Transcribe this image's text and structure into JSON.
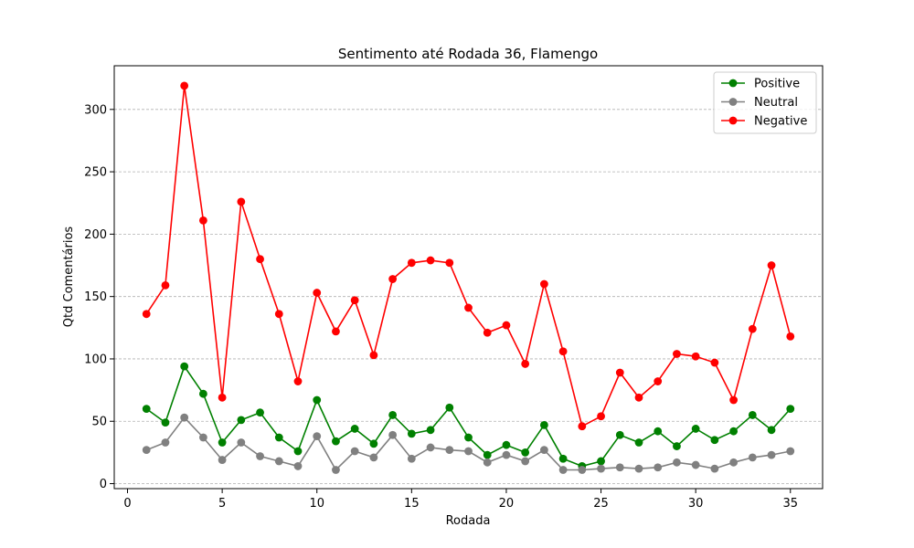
{
  "chart_data": {
    "type": "line",
    "title": "Sentimento até Rodada 36, Flamengo",
    "xlabel": "Rodada",
    "ylabel": "Qtd Comentários",
    "xlim": [
      -0.7,
      36.7
    ],
    "ylim": [
      -4,
      335
    ],
    "xticks": [
      0,
      5,
      10,
      15,
      20,
      25,
      30,
      35
    ],
    "yticks": [
      0,
      50,
      100,
      150,
      200,
      250,
      300
    ],
    "grid": "horizontal dashed",
    "legend_position": "top-right",
    "x": [
      1,
      2,
      3,
      4,
      5,
      6,
      7,
      8,
      9,
      10,
      11,
      12,
      13,
      14,
      15,
      16,
      17,
      18,
      19,
      20,
      21,
      22,
      23,
      24,
      25,
      26,
      27,
      28,
      29,
      30,
      31,
      32,
      33,
      34,
      35
    ],
    "series": [
      {
        "name": "Positive",
        "color": "#008000",
        "values": [
          60,
          49,
          94,
          72,
          33,
          51,
          57,
          37,
          26,
          67,
          34,
          44,
          32,
          55,
          40,
          43,
          61,
          37,
          23,
          31,
          25,
          47,
          20,
          14,
          18,
          39,
          33,
          42,
          30,
          44,
          35,
          42,
          55,
          43,
          60
        ]
      },
      {
        "name": "Neutral",
        "color": "#808080",
        "values": [
          27,
          33,
          53,
          37,
          19,
          33,
          22,
          18,
          14,
          38,
          11,
          26,
          21,
          39,
          20,
          29,
          27,
          26,
          17,
          23,
          18,
          27,
          11,
          11,
          12,
          13,
          12,
          13,
          17,
          15,
          12,
          17,
          21,
          23,
          26
        ]
      },
      {
        "name": "Negative",
        "color": "#ff0000",
        "values": [
          136,
          159,
          319,
          211,
          69,
          226,
          180,
          136,
          82,
          153,
          122,
          147,
          103,
          164,
          177,
          179,
          177,
          141,
          121,
          127,
          96,
          160,
          106,
          46,
          54,
          89,
          69,
          82,
          104,
          102,
          97,
          67,
          124,
          175,
          118
        ]
      }
    ]
  }
}
